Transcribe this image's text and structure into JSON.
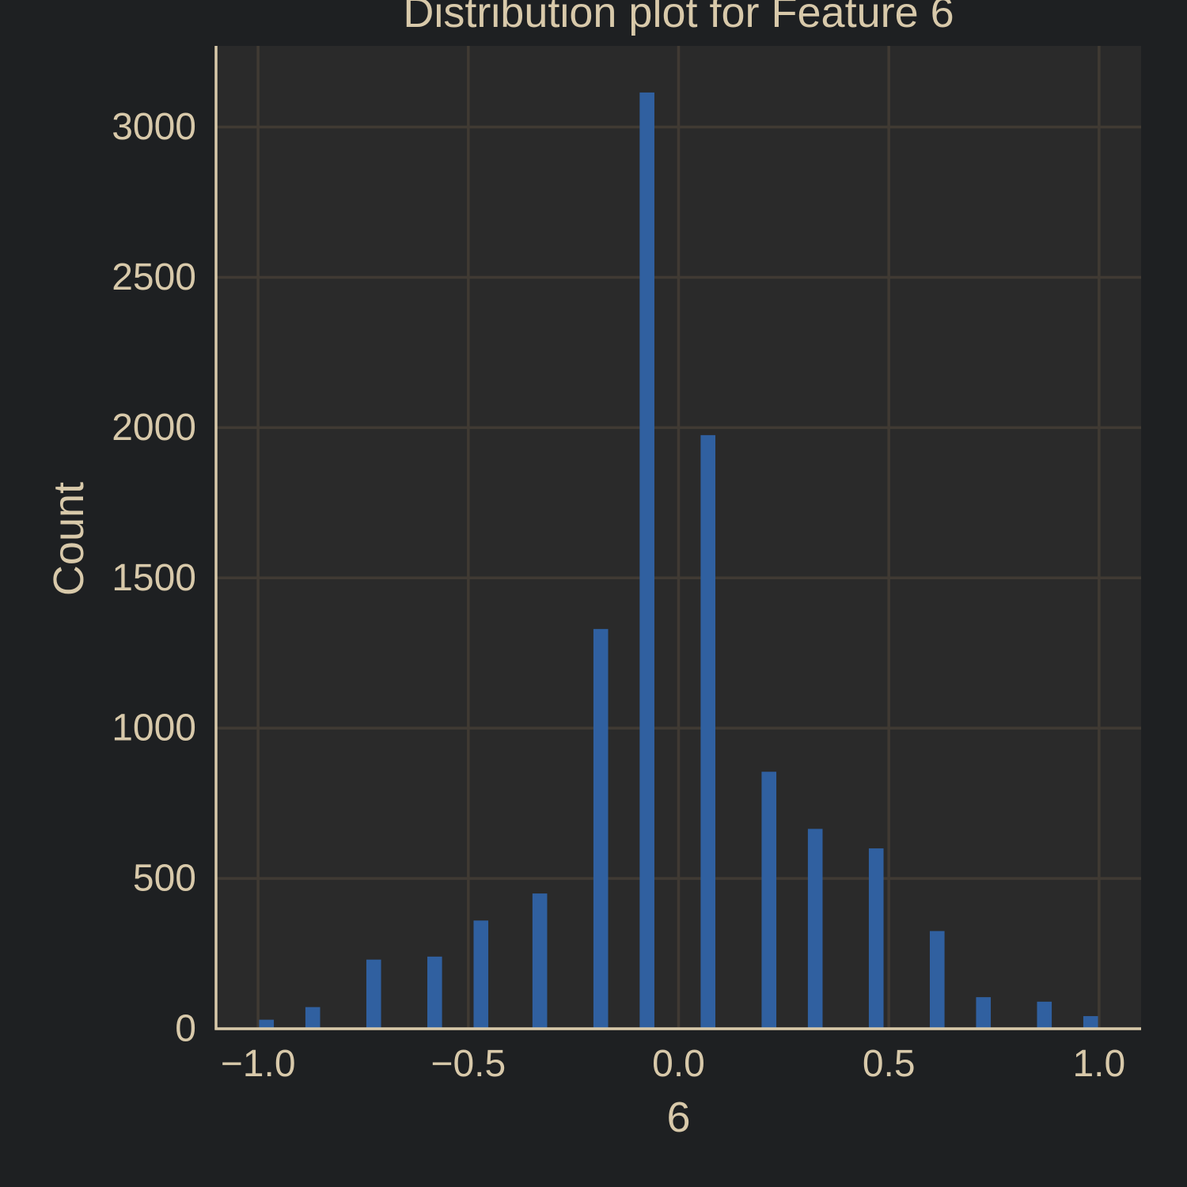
{
  "colors": {
    "figure_background": "#1e2022",
    "plot_background": "#2a2a2a",
    "grid": "#403a33",
    "axis_line": "#d8c9aa",
    "text": "#d8c9aa",
    "bar": "#3060a0"
  },
  "chart_data": {
    "type": "bar",
    "title": "Distribution plot for Feature 6",
    "xlabel": "6",
    "ylabel": "Count",
    "xlim": [
      -1.1,
      1.1
    ],
    "ylim": [
      0,
      3270
    ],
    "grid": true,
    "bin_width": 0.035,
    "x_ticks": [
      {
        "value": -1.0,
        "label": "−1.0"
      },
      {
        "value": -0.5,
        "label": "−0.5"
      },
      {
        "value": 0.0,
        "label": "0.0"
      },
      {
        "value": 0.5,
        "label": "0.5"
      },
      {
        "value": 1.0,
        "label": "1.0"
      }
    ],
    "y_ticks": [
      {
        "value": 0,
        "label": "0"
      },
      {
        "value": 500,
        "label": "500"
      },
      {
        "value": 1000,
        "label": "1000"
      },
      {
        "value": 1500,
        "label": "1500"
      },
      {
        "value": 2000,
        "label": "2000"
      },
      {
        "value": 2500,
        "label": "2500"
      },
      {
        "value": 3000,
        "label": "3000"
      }
    ],
    "series": [
      {
        "name": "6",
        "bins": [
          {
            "x": -0.98,
            "value": 30
          },
          {
            "x": -0.87,
            "value": 72
          },
          {
            "x": -0.725,
            "value": 230
          },
          {
            "x": -0.58,
            "value": 240
          },
          {
            "x": -0.47,
            "value": 360
          },
          {
            "x": -0.33,
            "value": 450
          },
          {
            "x": -0.185,
            "value": 1330
          },
          {
            "x": -0.075,
            "value": 3115
          },
          {
            "x": 0.07,
            "value": 1975
          },
          {
            "x": 0.215,
            "value": 855
          },
          {
            "x": 0.325,
            "value": 665
          },
          {
            "x": 0.47,
            "value": 600
          },
          {
            "x": 0.615,
            "value": 325
          },
          {
            "x": 0.725,
            "value": 105
          },
          {
            "x": 0.87,
            "value": 90
          },
          {
            "x": 0.98,
            "value": 42
          }
        ]
      }
    ]
  }
}
